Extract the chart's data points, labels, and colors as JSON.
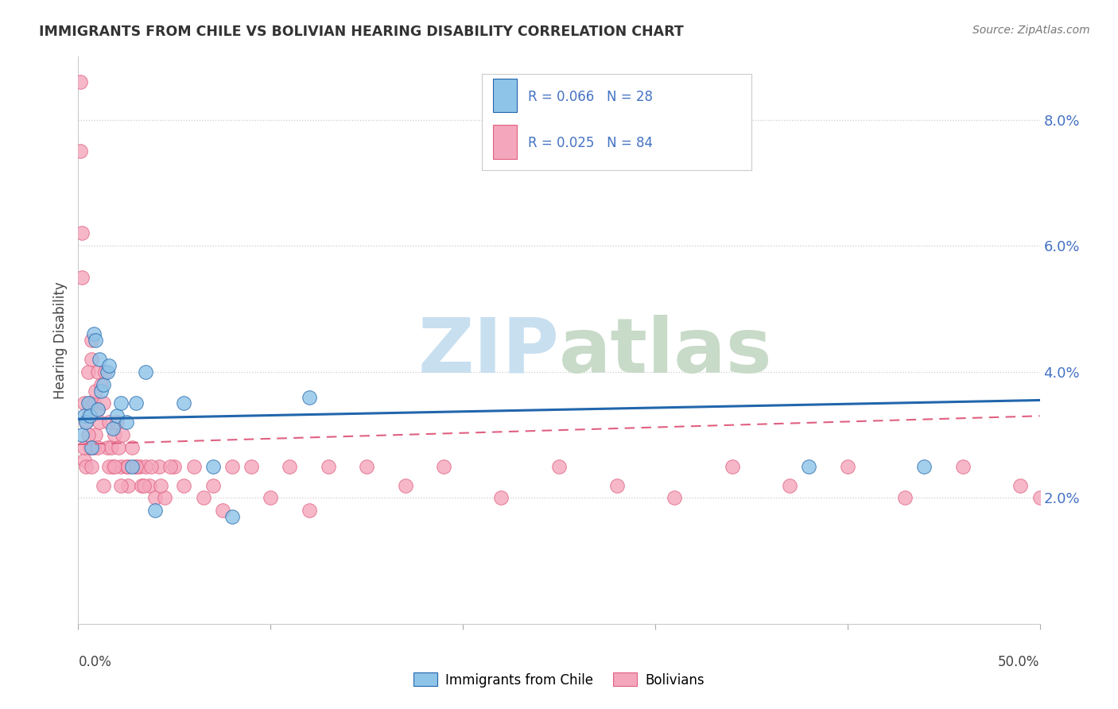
{
  "title": "IMMIGRANTS FROM CHILE VS BOLIVIAN HEARING DISABILITY CORRELATION CHART",
  "source": "Source: ZipAtlas.com",
  "ylabel": "Hearing Disability",
  "xlim": [
    0.0,
    0.5
  ],
  "ylim": [
    0.0,
    0.09
  ],
  "yticks": [
    0.02,
    0.04,
    0.06,
    0.08
  ],
  "ytick_labels": [
    "2.0%",
    "4.0%",
    "6.0%",
    "8.0%"
  ],
  "chile_color": "#8ec4e8",
  "bolivia_color": "#f4a6bc",
  "chile_line_color": "#2166ac",
  "bolivia_line_color": "#e06080",
  "watermark_zip_color": "#c8dff0",
  "watermark_atlas_color": "#c8dff0",
  "chile_points_x": [
    0.002,
    0.003,
    0.004,
    0.005,
    0.006,
    0.007,
    0.008,
    0.009,
    0.01,
    0.011,
    0.012,
    0.013,
    0.015,
    0.016,
    0.018,
    0.02,
    0.022,
    0.025,
    0.028,
    0.03,
    0.035,
    0.04,
    0.055,
    0.07,
    0.08,
    0.12,
    0.38,
    0.44
  ],
  "chile_points_y": [
    0.03,
    0.033,
    0.032,
    0.035,
    0.033,
    0.028,
    0.046,
    0.045,
    0.034,
    0.042,
    0.037,
    0.038,
    0.04,
    0.041,
    0.031,
    0.033,
    0.035,
    0.032,
    0.025,
    0.035,
    0.04,
    0.018,
    0.035,
    0.025,
    0.017,
    0.036,
    0.025,
    0.025
  ],
  "bolivia_points_x": [
    0.001,
    0.001,
    0.002,
    0.002,
    0.003,
    0.003,
    0.004,
    0.004,
    0.005,
    0.005,
    0.006,
    0.006,
    0.007,
    0.007,
    0.008,
    0.008,
    0.009,
    0.009,
    0.01,
    0.01,
    0.011,
    0.012,
    0.013,
    0.014,
    0.015,
    0.016,
    0.017,
    0.018,
    0.019,
    0.02,
    0.021,
    0.022,
    0.023,
    0.025,
    0.026,
    0.028,
    0.03,
    0.032,
    0.033,
    0.035,
    0.037,
    0.04,
    0.042,
    0.045,
    0.05,
    0.055,
    0.06,
    0.065,
    0.07,
    0.075,
    0.08,
    0.09,
    0.1,
    0.11,
    0.12,
    0.13,
    0.15,
    0.17,
    0.19,
    0.22,
    0.25,
    0.28,
    0.31,
    0.34,
    0.37,
    0.4,
    0.43,
    0.46,
    0.49,
    0.5,
    0.003,
    0.005,
    0.007,
    0.01,
    0.013,
    0.016,
    0.019,
    0.022,
    0.026,
    0.03,
    0.034,
    0.038,
    0.043,
    0.048
  ],
  "bolivia_points_y": [
    0.086,
    0.075,
    0.062,
    0.055,
    0.035,
    0.026,
    0.032,
    0.025,
    0.04,
    0.033,
    0.035,
    0.028,
    0.045,
    0.042,
    0.035,
    0.028,
    0.037,
    0.03,
    0.04,
    0.034,
    0.032,
    0.038,
    0.035,
    0.04,
    0.028,
    0.032,
    0.028,
    0.025,
    0.03,
    0.032,
    0.028,
    0.025,
    0.03,
    0.025,
    0.022,
    0.028,
    0.025,
    0.025,
    0.022,
    0.025,
    0.022,
    0.02,
    0.025,
    0.02,
    0.025,
    0.022,
    0.025,
    0.02,
    0.022,
    0.018,
    0.025,
    0.025,
    0.02,
    0.025,
    0.018,
    0.025,
    0.025,
    0.022,
    0.025,
    0.02,
    0.025,
    0.022,
    0.02,
    0.025,
    0.022,
    0.025,
    0.02,
    0.025,
    0.022,
    0.02,
    0.028,
    0.03,
    0.025,
    0.028,
    0.022,
    0.025,
    0.025,
    0.022,
    0.025,
    0.025,
    0.022,
    0.025,
    0.022,
    0.025
  ]
}
